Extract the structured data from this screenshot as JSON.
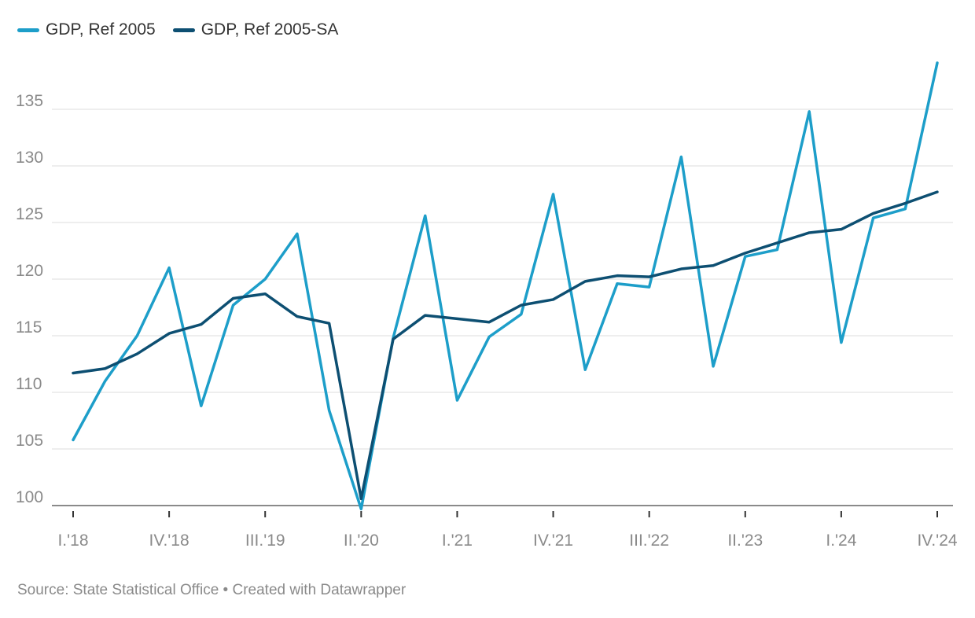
{
  "chart_data": {
    "type": "line",
    "categories": [
      "I.'18",
      "II.'18",
      "III.'18",
      "IV.'18",
      "I.'19",
      "II.'19",
      "III.'19",
      "IV.'19",
      "I.'20",
      "II.'20",
      "III.'20",
      "IV.'20",
      "I.'21",
      "II.'21",
      "III.'21",
      "IV.'21",
      "I.'22",
      "II.'22",
      "III.'22",
      "IV.'22",
      "I.'23",
      "II.'23",
      "III.'23",
      "IV.'23",
      "I.'24",
      "II.'24",
      "III.'24",
      "IV.'24"
    ],
    "x_tick_labels": [
      "I.'18",
      "IV.'18",
      "III.'19",
      "II.'20",
      "I.'21",
      "IV.'21",
      "III.'22",
      "II.'23",
      "I.'24",
      "IV.'24"
    ],
    "series": [
      {
        "name": "GDP, Ref 2005",
        "color": "#1d9ec9",
        "values": [
          105.8,
          111.0,
          115.0,
          121.0,
          108.8,
          117.7,
          120.0,
          124.0,
          108.4,
          99.7,
          114.8,
          125.6,
          109.3,
          114.9,
          116.9,
          127.5,
          112.0,
          119.6,
          119.3,
          130.8,
          112.3,
          122.0,
          122.6,
          134.8,
          114.4,
          125.4,
          126.2,
          139.1
        ]
      },
      {
        "name": "GDP, Ref 2005-SA",
        "color": "#0d4f72",
        "values": [
          111.7,
          112.1,
          113.4,
          115.2,
          116.0,
          118.3,
          118.7,
          116.7,
          116.1,
          100.6,
          114.7,
          116.8,
          116.5,
          116.2,
          117.7,
          118.2,
          119.8,
          120.3,
          120.2,
          120.9,
          121.2,
          122.3,
          123.2,
          124.1,
          124.4,
          125.8,
          126.7,
          127.7
        ]
      }
    ],
    "y_ticks": [
      100,
      105,
      110,
      115,
      120,
      125,
      130,
      135
    ],
    "ylim": [
      100,
      140
    ],
    "grid": true,
    "legend_position": "top-left",
    "source": "Source: State Statistical Office • Created with Datawrapper"
  }
}
